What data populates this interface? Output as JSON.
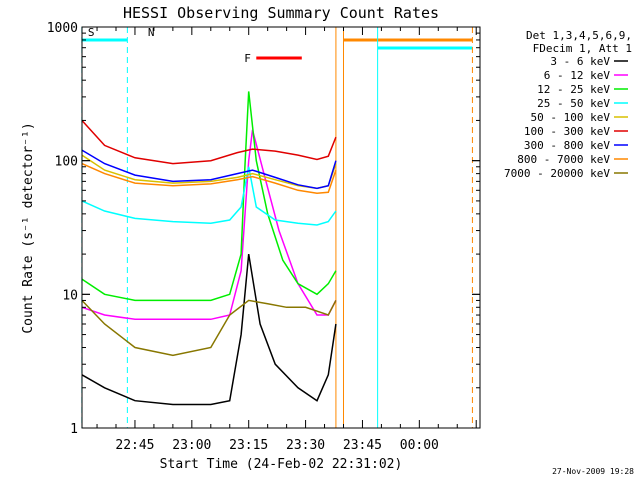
{
  "chart_data": {
    "type": "line",
    "title": "HESSI Observing Summary Count Rates",
    "xlabel": "Start Time (24-Feb-02 22:31:02)",
    "ylabel": "Count Rate (s⁻¹ detector⁻¹)",
    "yscale": "log",
    "ylim": [
      1,
      1000
    ],
    "xlim": [
      "22:31:02",
      "00:16:00"
    ],
    "x_ticks": [
      "22:45",
      "23:00",
      "23:15",
      "23:30",
      "23:45",
      "00:00"
    ],
    "y_ticks": [
      "1",
      "10",
      "100",
      "1000"
    ],
    "legend": {
      "position": "right",
      "header": [
        "Det 1,3,4,5,6,9,",
        "FDecim 1, Att 1"
      ]
    },
    "series": [
      {
        "name": "3 - 6 keV",
        "color": "#000000",
        "x": [
          "22:31",
          "22:37",
          "22:45",
          "22:55",
          "23:05",
          "23:10",
          "23:13",
          "23:15",
          "23:18",
          "23:22",
          "23:28",
          "23:33",
          "23:36",
          "23:38"
        ],
        "values": [
          2.5,
          2.0,
          1.6,
          1.5,
          1.5,
          1.6,
          5,
          20,
          6,
          3,
          2,
          1.6,
          2.5,
          6
        ]
      },
      {
        "name": "6 - 12 keV",
        "color": "#ff00ff",
        "x": [
          "22:31",
          "22:37",
          "22:45",
          "22:55",
          "23:05",
          "23:10",
          "23:13",
          "23:15",
          "23:16",
          "23:19",
          "23:23",
          "23:28",
          "23:33",
          "23:36",
          "23:38"
        ],
        "values": [
          8,
          7,
          6.5,
          6.5,
          6.5,
          7,
          15,
          100,
          170,
          80,
          30,
          12,
          7,
          7,
          9
        ]
      },
      {
        "name": "12 - 25 keV",
        "color": "#00ee00",
        "x": [
          "22:31",
          "22:37",
          "22:45",
          "22:55",
          "23:05",
          "23:10",
          "23:13",
          "23:14",
          "23:15",
          "23:17",
          "23:20",
          "23:24",
          "23:28",
          "23:33",
          "23:36",
          "23:38"
        ],
        "values": [
          13,
          10,
          9,
          9,
          9,
          10,
          20,
          90,
          330,
          100,
          40,
          18,
          12,
          10,
          12,
          15
        ]
      },
      {
        "name": "25 - 50 keV",
        "color": "#00ffff",
        "x": [
          "22:31",
          "22:37",
          "22:45",
          "22:55",
          "23:05",
          "23:10",
          "23:13",
          "23:15",
          "23:17",
          "23:22",
          "23:28",
          "23:33",
          "23:36",
          "23:38"
        ],
        "values": [
          50,
          42,
          37,
          35,
          34,
          36,
          45,
          90,
          45,
          36,
          34,
          33,
          35,
          42
        ]
      },
      {
        "name": "50 - 100 keV",
        "color": "#d8c000",
        "x": [
          "22:31",
          "22:37",
          "22:45",
          "22:55",
          "23:05",
          "23:12",
          "23:16",
          "23:22",
          "23:28",
          "23:33",
          "23:36",
          "23:38"
        ],
        "values": [
          110,
          85,
          72,
          68,
          70,
          75,
          80,
          72,
          65,
          62,
          65,
          95
        ]
      },
      {
        "name": "100 - 300 keV",
        "color": "#e00000",
        "x": [
          "22:31",
          "22:37",
          "22:45",
          "22:55",
          "23:05",
          "23:12",
          "23:16",
          "23:22",
          "23:28",
          "23:33",
          "23:36",
          "23:38"
        ],
        "values": [
          200,
          130,
          105,
          95,
          100,
          115,
          122,
          118,
          110,
          102,
          108,
          150
        ]
      },
      {
        "name": "300 - 800 keV",
        "color": "#0000ff",
        "x": [
          "22:31",
          "22:37",
          "22:45",
          "22:55",
          "23:05",
          "23:12",
          "23:16",
          "23:22",
          "23:28",
          "23:33",
          "23:36",
          "23:38"
        ],
        "values": [
          120,
          95,
          78,
          70,
          72,
          80,
          85,
          75,
          66,
          62,
          65,
          100
        ]
      },
      {
        "name": "800 - 7000 keV",
        "color": "#ff8800",
        "x": [
          "22:31",
          "22:37",
          "22:45",
          "22:55",
          "23:05",
          "23:12",
          "23:16",
          "23:22",
          "23:28",
          "23:33",
          "23:36",
          "23:38"
        ],
        "values": [
          95,
          80,
          68,
          65,
          67,
          72,
          76,
          68,
          60,
          57,
          58,
          85
        ]
      },
      {
        "name": "7000 - 20000 keV",
        "color": "#887700",
        "x": [
          "22:31",
          "22:37",
          "22:45",
          "22:55",
          "23:05",
          "23:10",
          "23:15",
          "23:20",
          "23:25",
          "23:30",
          "23:36",
          "23:38"
        ],
        "values": [
          9,
          6,
          4,
          3.5,
          4,
          7,
          9,
          8.5,
          8,
          8,
          7,
          9
        ]
      }
    ],
    "state_bars": [
      {
        "label": "S",
        "color": "#ff8800",
        "row": "top",
        "start": "22:31",
        "end": null
      },
      {
        "label": "N",
        "color": "#00ffff",
        "row": "top",
        "start": "22:31",
        "end": "22:43"
      },
      {
        "label": "F",
        "color": "#ff0000",
        "row": "flare",
        "start": "23:17",
        "end": "23:29"
      },
      {
        "label": "",
        "color": "#ff8800",
        "row": "top",
        "start": "23:40",
        "end": "00:14"
      },
      {
        "label": "",
        "color": "#00ffff",
        "row": "top2",
        "start": "23:49",
        "end": "00:14"
      }
    ],
    "vertical_markers": [
      {
        "x": "22:31",
        "color": "#00ffff",
        "dashed": true
      },
      {
        "x": "22:43",
        "color": "#00ffff",
        "dashed": true
      },
      {
        "x": "23:38",
        "color": "#ff8800",
        "dashed": false
      },
      {
        "x": "23:40",
        "color": "#ff8800",
        "dashed": false
      },
      {
        "x": "23:49",
        "color": "#00ffff",
        "dashed": false
      },
      {
        "x": "00:14",
        "color": "#ff8800",
        "dashed": true
      }
    ]
  },
  "timestamp": "27-Nov-2009 19:28"
}
